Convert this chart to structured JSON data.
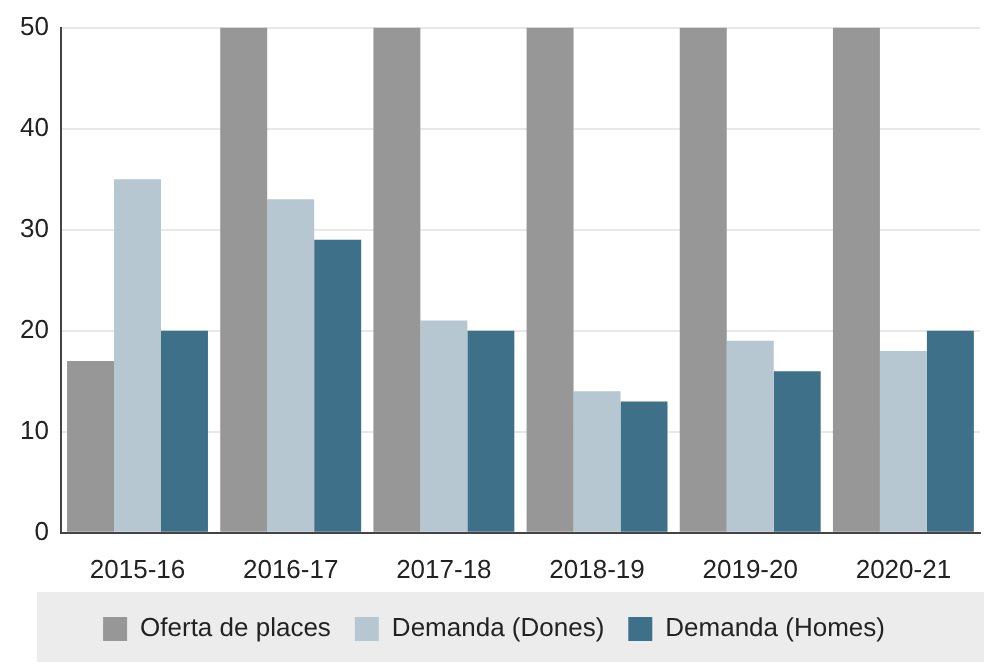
{
  "chart_data": {
    "type": "bar",
    "categories": [
      "2015-16",
      "2016-17",
      "2017-18",
      "2018-19",
      "2019-20",
      "2020-21"
    ],
    "series": [
      {
        "name": "Oferta de places",
        "color": "#979797",
        "values": [
          17,
          50,
          50,
          50,
          50,
          50
        ]
      },
      {
        "name": "Demanda (Dones)",
        "color": "#b7c7d1",
        "values": [
          35,
          33,
          21,
          14,
          19,
          18
        ]
      },
      {
        "name": "Demanda (Homes)",
        "color": "#3f7089",
        "values": [
          20,
          29,
          20,
          13,
          16,
          20
        ]
      }
    ],
    "ylim": [
      0,
      50
    ],
    "yticks": [
      0,
      10,
      20,
      30,
      40,
      50
    ],
    "grid": "y",
    "legend": "bottom"
  }
}
